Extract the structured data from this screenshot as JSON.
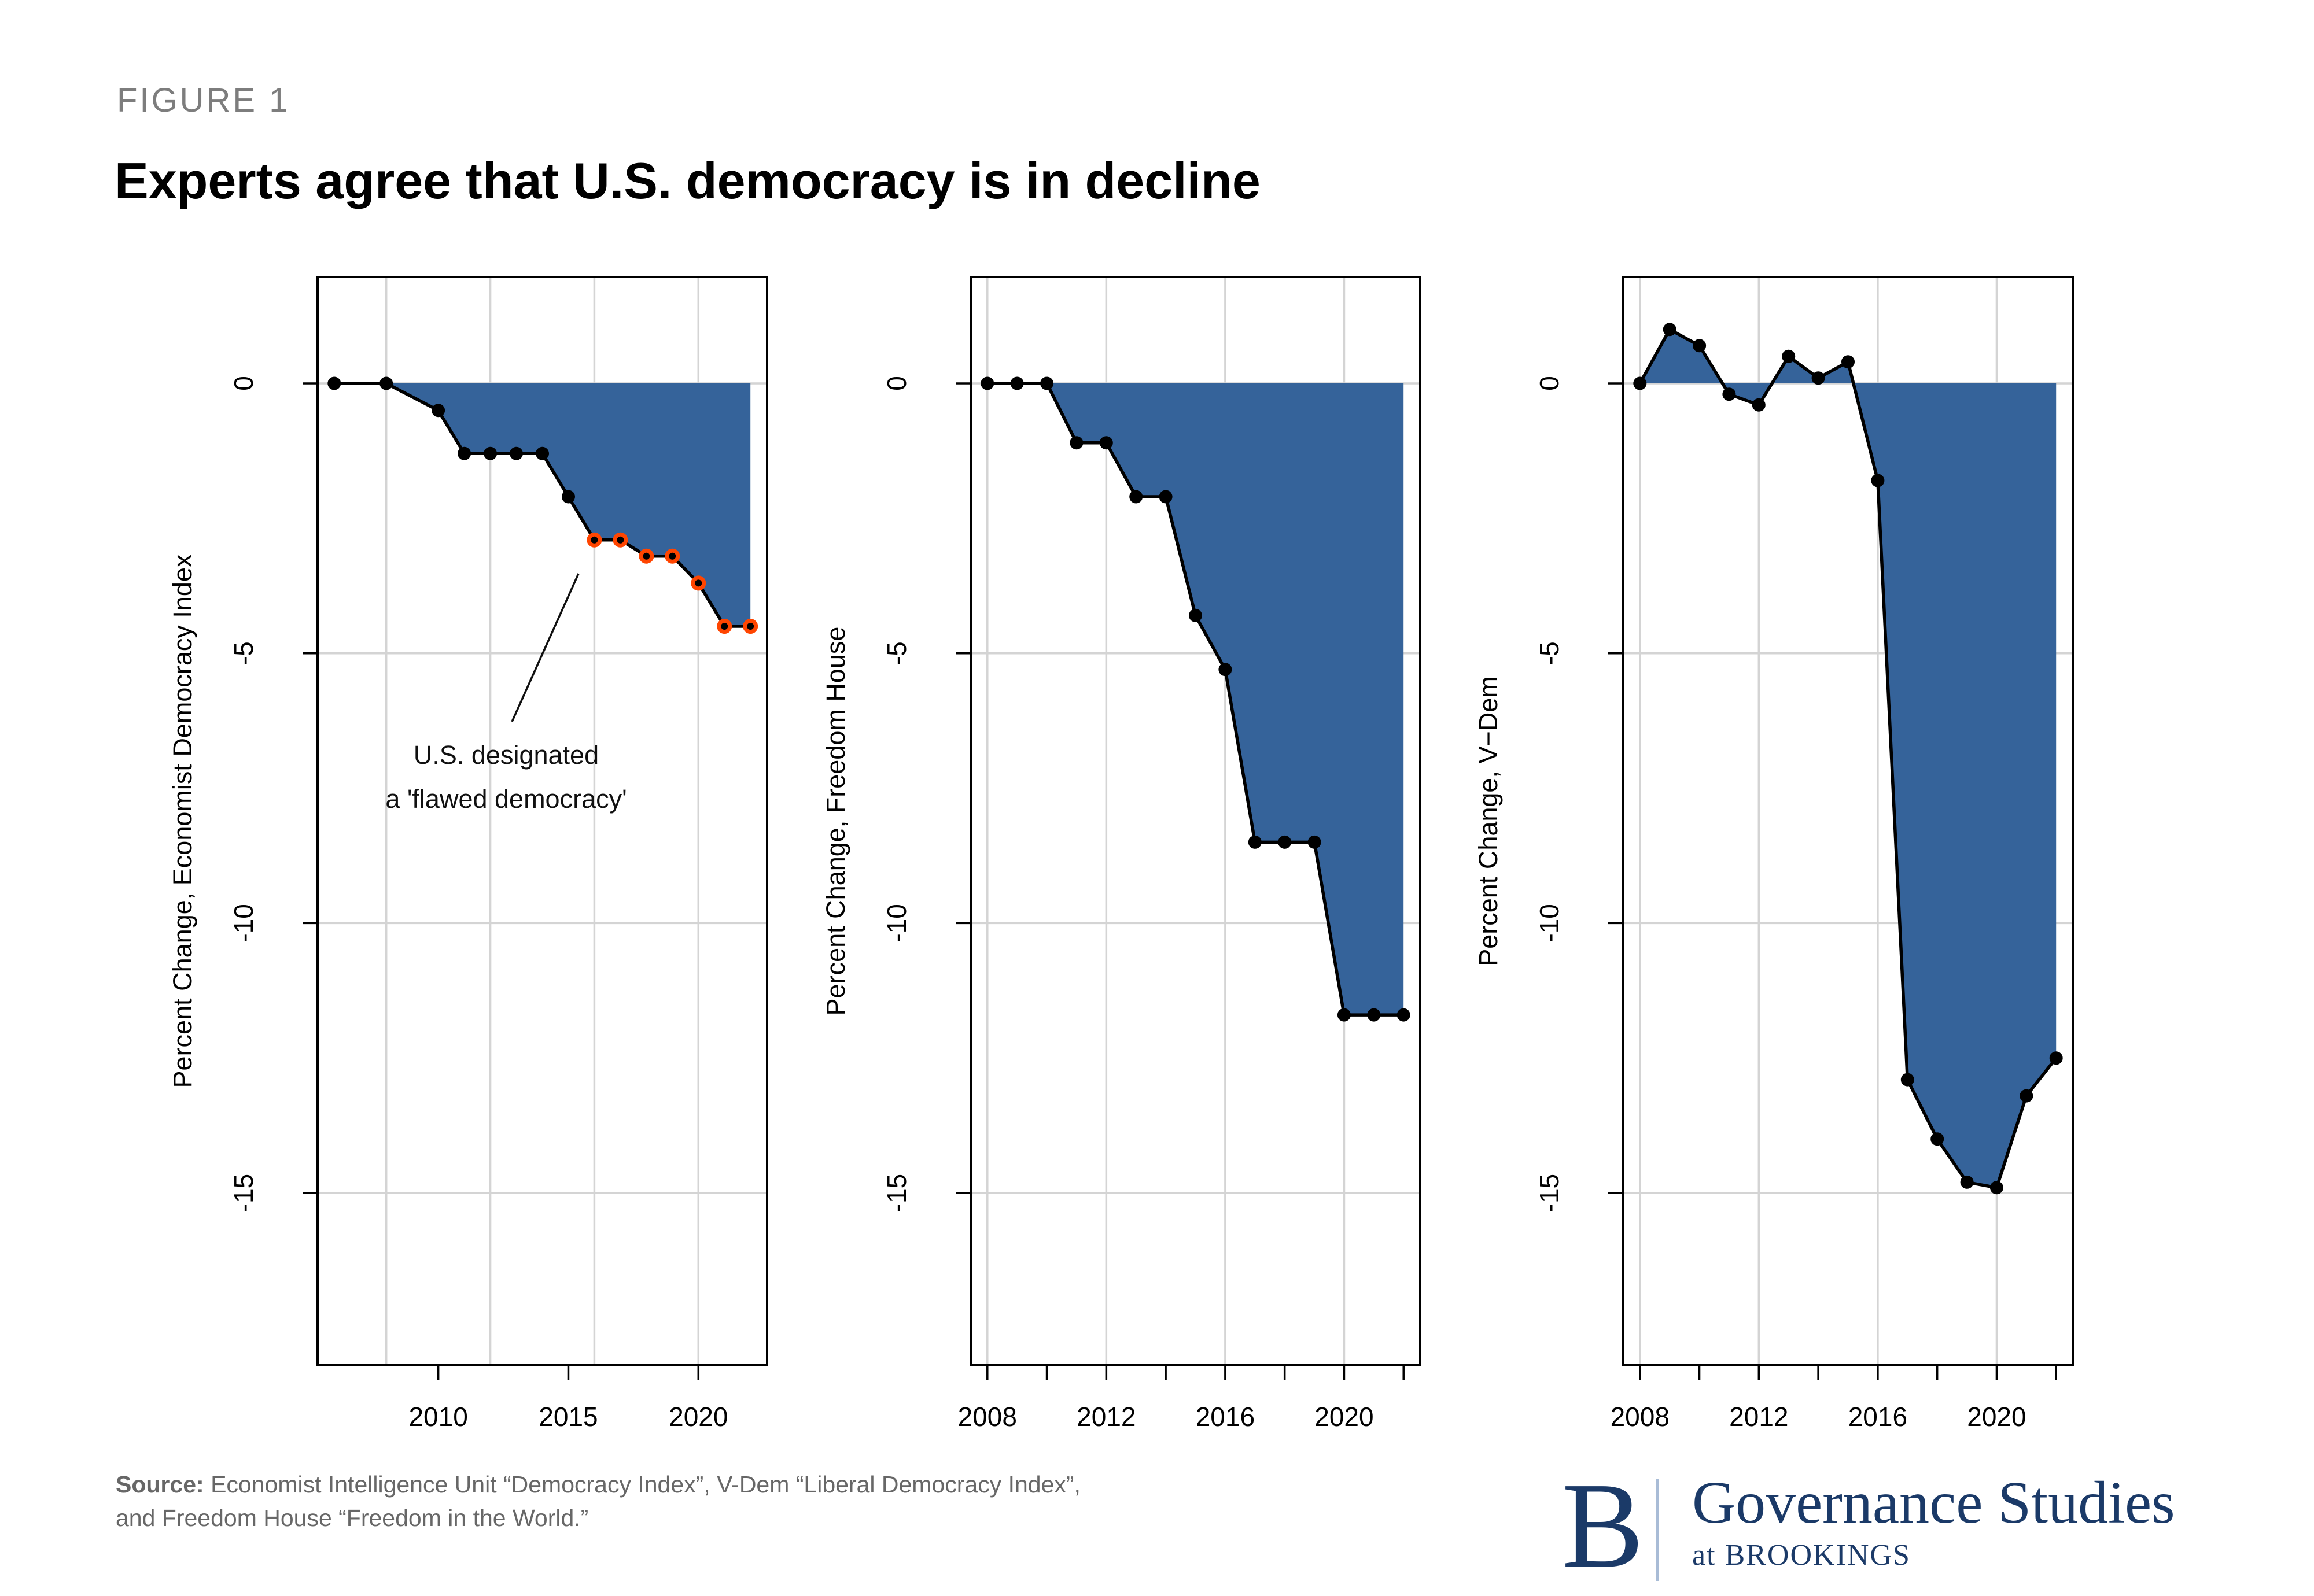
{
  "figure_label": "FIGURE 1",
  "title": "Experts agree that U.S. democracy is in decline",
  "annotation": {
    "line1": "U.S. designated",
    "line2": "a 'flawed democracy'"
  },
  "source": {
    "label": "Source:",
    "line1": "Economist Intelligence Unit “Democracy Index”, V-Dem “Liberal Democracy Index”,",
    "line2": "and Freedom House “Freedom in the World.”"
  },
  "logo": {
    "b": "B",
    "name": "Governance Studies",
    "sub": "at BROOKINGS"
  },
  "colors": {
    "area_fill": "#35639A",
    "line": "#000000",
    "point": "#000000",
    "highlight_ring": "#FF4500",
    "grid": "#D4D4D4",
    "panel_border": "#000000",
    "axis_text": "#000000",
    "title_text": "#000000",
    "figure_label_text": "#7D7D7D",
    "source_text": "#676767",
    "logo_navy": "#1B3A68"
  },
  "chart_data": [
    {
      "type": "area",
      "name": "economist-democracy-index",
      "ylabel": "Percent Change, Economist Democracy Index",
      "x": [
        2006,
        2008,
        2010,
        2011,
        2012,
        2013,
        2014,
        2015,
        2016,
        2017,
        2018,
        2019,
        2020,
        2021,
        2022
      ],
      "y": [
        0,
        0,
        -0.5,
        -1.3,
        -1.3,
        -1.3,
        -1.3,
        -2.1,
        -2.9,
        -2.9,
        -3.2,
        -3.2,
        -3.7,
        -4.5,
        -4.5
      ],
      "x_domain": [
        2005.36,
        2022.64
      ],
      "grid_years": [
        2008,
        2012,
        2016,
        2020
      ],
      "x_ticks": [
        2010,
        2015,
        2020
      ],
      "x_tick_labels": [
        "2010",
        "2015",
        "2020"
      ],
      "highlight_from": 2016,
      "fill_to_zero": true
    },
    {
      "type": "area",
      "name": "freedom-house",
      "ylabel": "Percent Change, Freedom House",
      "x": [
        2008,
        2009,
        2010,
        2011,
        2012,
        2013,
        2014,
        2015,
        2016,
        2017,
        2018,
        2019,
        2020,
        2021,
        2022
      ],
      "y": [
        0,
        0,
        0,
        -1.1,
        -1.1,
        -2.1,
        -2.1,
        -4.3,
        -5.3,
        -8.5,
        -8.5,
        -8.5,
        -11.7,
        -11.7,
        -11.7
      ],
      "x_domain": [
        2007.44,
        2022.56
      ],
      "grid_years": [
        2008,
        2012,
        2016,
        2020
      ],
      "x_ticks": [
        2008,
        2010,
        2012,
        2014,
        2016,
        2018,
        2020,
        2022
      ],
      "x_tick_labels": [
        "2008",
        "",
        "2012",
        "",
        "2016",
        "",
        "2020",
        ""
      ],
      "highlight_from": null,
      "fill_to_zero": true
    },
    {
      "type": "area",
      "name": "v-dem",
      "ylabel": "Percent Change, V−Dem",
      "x": [
        2008,
        2009,
        2010,
        2011,
        2012,
        2013,
        2014,
        2015,
        2016,
        2017,
        2018,
        2019,
        2020,
        2021,
        2022
      ],
      "y": [
        0,
        1.0,
        0.7,
        -0.2,
        -0.4,
        0.5,
        0.1,
        0.4,
        -1.8,
        -12.9,
        -14.0,
        -14.8,
        -14.9,
        -13.2,
        -12.5
      ],
      "x_domain": [
        2007.44,
        2022.56
      ],
      "grid_years": [
        2008,
        2012,
        2016,
        2020
      ],
      "x_ticks": [
        2008,
        2010,
        2012,
        2014,
        2016,
        2018,
        2020,
        2022
      ],
      "x_tick_labels": [
        "2008",
        "",
        "2012",
        "",
        "2016",
        "",
        "2020",
        ""
      ],
      "highlight_from": null,
      "fill_to_zero": true
    }
  ],
  "y_axis": {
    "ticks": [
      0,
      -5,
      -10,
      -15
    ],
    "tick_labels": [
      "0",
      "-5",
      "-10",
      "-15"
    ],
    "domain": [
      1.97,
      -18.19
    ]
  }
}
